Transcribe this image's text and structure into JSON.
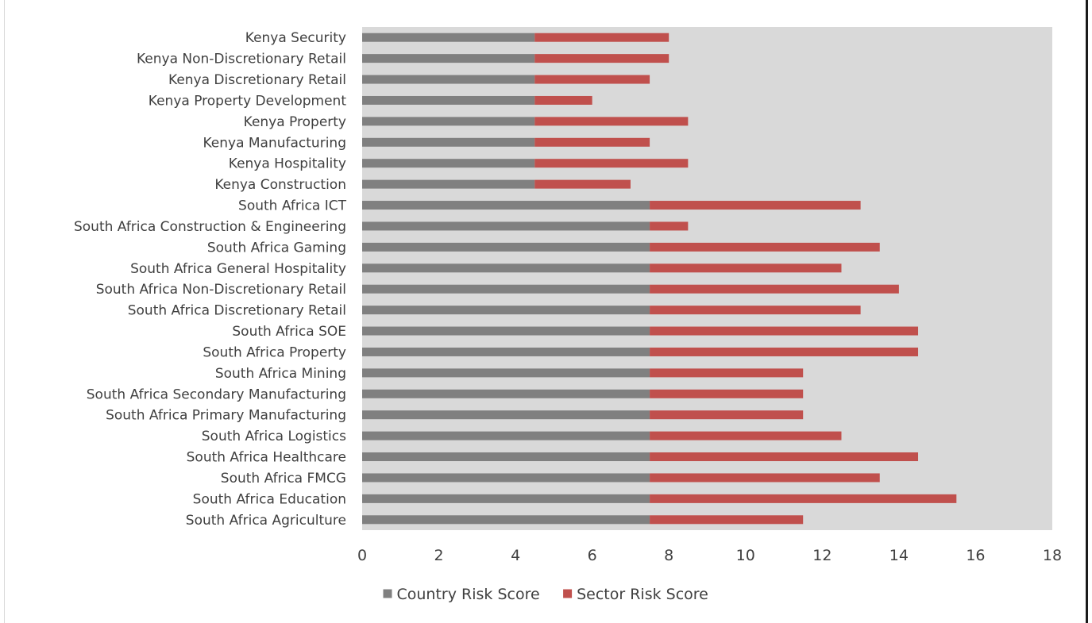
{
  "chart_data": {
    "type": "bar",
    "orientation": "horizontal",
    "stacked": true,
    "categories": [
      "South Africa Agriculture",
      "South Africa Education",
      "South Africa FMCG",
      "South Africa Healthcare",
      "South Africa Logistics",
      "South Africa Primary Manufacturing",
      "South Africa Secondary Manufacturing ",
      "South Africa Mining ",
      "South Africa Property",
      "South Africa SOE",
      "South Africa Discretionary Retail",
      "South Africa Non-Discretionary Retail",
      "South Africa General Hospitality ",
      "South Africa Gaming ",
      "South Africa Construction & Engineering",
      "South Africa ICT",
      "Kenya Construction",
      "Kenya Hospitality",
      "Kenya Manufacturing",
      "Kenya Property",
      "Kenya Property Development",
      "Kenya Discretionary Retail",
      "Kenya Non-Discretionary Retail",
      "Kenya Security "
    ],
    "series": [
      {
        "name": "Country Risk Score",
        "color": "#808080",
        "values": [
          7.5,
          7.5,
          7.5,
          7.5,
          7.5,
          7.5,
          7.5,
          7.5,
          7.5,
          7.5,
          7.5,
          7.5,
          7.5,
          7.5,
          7.5,
          7.5,
          4.5,
          4.5,
          4.5,
          4.5,
          4.5,
          4.5,
          4.5,
          4.5
        ]
      },
      {
        "name": "Sector Risk Score",
        "color": "#c0504d",
        "values": [
          4,
          8,
          6,
          7,
          5,
          4,
          4,
          4,
          7,
          7,
          5.5,
          6.5,
          5,
          6,
          1,
          5.5,
          2.5,
          4,
          3,
          4,
          1.5,
          3,
          3.5,
          3.5
        ]
      }
    ],
    "xlim": [
      0,
      18
    ],
    "xticks": [
      "0",
      "2",
      "4",
      "6",
      "8",
      "10",
      "12",
      "14",
      "16",
      "18"
    ],
    "title": "",
    "xlabel": "",
    "ylabel": "",
    "plot_background": "#d9d9d9",
    "grid": false,
    "legend_position": "bottom"
  }
}
